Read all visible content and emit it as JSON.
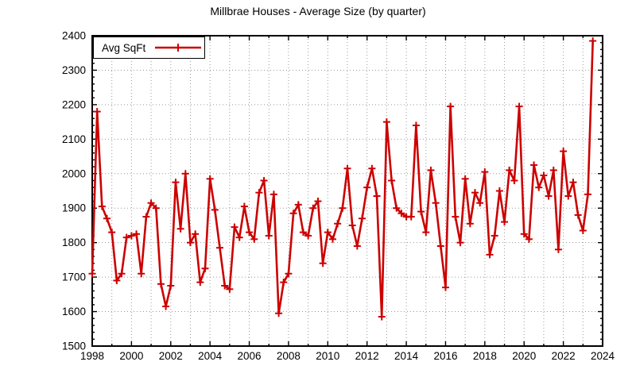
{
  "chart_data": {
    "type": "line",
    "title": "Millbrae Houses - Average Size (by quarter)",
    "legend": "Avg SqFt",
    "line_color": "#cc0000",
    "grid_color": "#999999",
    "axis_color": "#000000",
    "grid": "dotted; vertical every year, horizontal every 100",
    "legend_position": "top-left boxed",
    "xlim": [
      1998,
      2024
    ],
    "ylim": [
      1500,
      2400
    ],
    "x_ticks": [
      1998,
      2000,
      2002,
      2004,
      2006,
      2008,
      2010,
      2012,
      2014,
      2016,
      2018,
      2020,
      2022,
      2024
    ],
    "y_ticks": [
      1500,
      1600,
      1700,
      1800,
      1900,
      2000,
      2100,
      2200,
      2300,
      2400
    ],
    "x_minor_step": 1,
    "y_minor_step": 20,
    "x_start": 1998.0,
    "x_step": 0.25,
    "x_unit": "year (quarterly points)",
    "ylabel_implied": "Avg SqFt",
    "values": [
      1710,
      2180,
      1905,
      1870,
      1830,
      1690,
      1710,
      1815,
      1820,
      1825,
      1710,
      1875,
      1915,
      1900,
      1680,
      1615,
      1675,
      1975,
      1840,
      2000,
      1800,
      1825,
      1685,
      1725,
      1985,
      1895,
      1785,
      1675,
      1665,
      1845,
      1815,
      1905,
      1830,
      1810,
      1945,
      1980,
      1820,
      1940,
      1595,
      1685,
      1710,
      1885,
      1910,
      1830,
      1820,
      1900,
      1920,
      1740,
      1830,
      1810,
      1855,
      1900,
      2015,
      1850,
      1790,
      1870,
      1960,
      2015,
      1935,
      1585,
      2150,
      1980,
      1900,
      1885,
      1875,
      1875,
      2140,
      1890,
      1830,
      2010,
      1915,
      1790,
      1670,
      2195,
      1875,
      1800,
      1985,
      1855,
      1945,
      1915,
      2005,
      1765,
      1820,
      1950,
      1860,
      2010,
      1980,
      2195,
      1825,
      1810,
      2025,
      1960,
      1995,
      1935,
      2010,
      1780,
      2065,
      1935,
      1975,
      1880,
      1835,
      1940,
      2385
    ]
  }
}
